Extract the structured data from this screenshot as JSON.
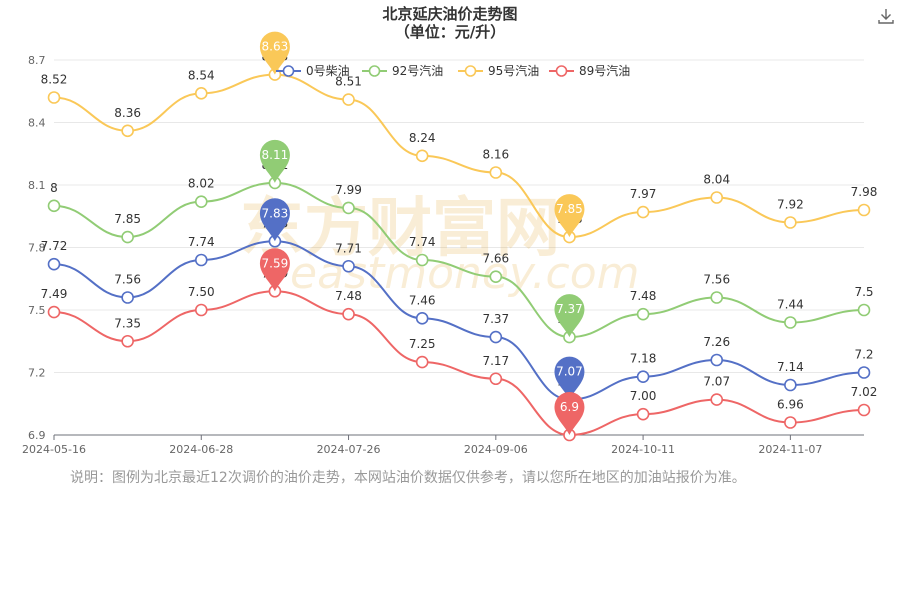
{
  "chart_data": {
    "type": "line",
    "title": "北京延庆油价走势图",
    "subtitle": "（单位：元/升）",
    "x_tick_labels": [
      "2024-05-16",
      "2024-06-28",
      "2024-07-26",
      "2024-09-06",
      "2024-10-11",
      "2024-11-07"
    ],
    "y_ticks": [
      "6.9",
      "7.2",
      "7.5",
      "7.8",
      "8.1",
      "8.4",
      "8.7"
    ],
    "ylim": [
      6.9,
      8.7
    ],
    "grid": true,
    "legend_position": "top",
    "series": [
      {
        "name": "0号柴油",
        "color": "#5470c6",
        "values": [
          7.72,
          7.56,
          7.74,
          7.83,
          7.71,
          7.46,
          7.37,
          7.07,
          7.18,
          7.26,
          7.14,
          7.2
        ],
        "labels": [
          "7.72",
          "7.56",
          "7.74",
          "7.83",
          "7.71",
          "7.46",
          "7.37",
          "7.07",
          "7.18",
          "7.26",
          "7.14",
          "7.2"
        ],
        "max_label": "7.83",
        "min_label": "7.07"
      },
      {
        "name": "92号汽油",
        "color": "#91cc75",
        "values": [
          8.0,
          7.85,
          8.02,
          8.11,
          7.99,
          7.74,
          7.66,
          7.37,
          7.48,
          7.56,
          7.44,
          7.5
        ],
        "labels": [
          "8",
          "7.85",
          "8.02",
          "8.11",
          "7.99",
          "7.74",
          "7.66",
          "7.37",
          "7.48",
          "7.56",
          "7.44",
          "7.5"
        ],
        "max_label": "8.11",
        "min_label": "7.37"
      },
      {
        "name": "95号汽油",
        "color": "#fac858",
        "values": [
          8.52,
          8.36,
          8.54,
          8.63,
          8.51,
          8.24,
          8.16,
          7.85,
          7.97,
          8.04,
          7.92,
          7.98
        ],
        "labels": [
          "8.52",
          "8.36",
          "8.54",
          "8.63",
          "8.51",
          "8.24",
          "8.16",
          "7.85",
          "7.97",
          "8.04",
          "7.92",
          "7.98"
        ],
        "max_label": "8.63",
        "min_label": "7.85"
      },
      {
        "name": "89号汽油",
        "color": "#ee6666",
        "values": [
          7.49,
          7.35,
          7.5,
          7.59,
          7.48,
          7.25,
          7.17,
          6.9,
          7.0,
          7.07,
          6.96,
          7.02
        ],
        "labels": [
          "7.49",
          "7.35",
          "7.50",
          "7.59",
          "7.48",
          "7.25",
          "7.17",
          "6.9",
          "7.00",
          "7.07",
          "6.96",
          "7.02"
        ],
        "max_label": "7.59",
        "min_label": "6.9"
      }
    ]
  },
  "watermark": {
    "cn": "东方财富网",
    "en": "eastmoney.com"
  },
  "note": "说明：图例为北京最近12次调价的油价走势，本网站油价数据仅供参考，请以您所在地区的加油站报价为准。",
  "icons": {
    "download": "download-icon"
  }
}
